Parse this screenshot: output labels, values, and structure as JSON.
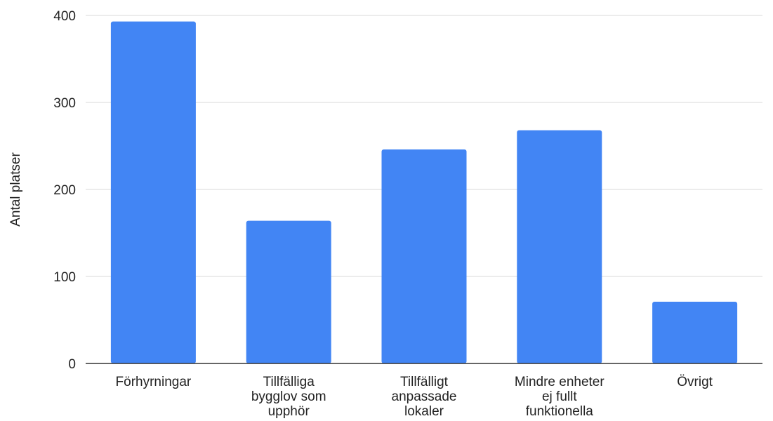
{
  "chart_data": {
    "type": "bar",
    "categories": [
      [
        "Förhyrningar"
      ],
      [
        "Tillfälliga",
        "bygglov som",
        "upphör"
      ],
      [
        "Tillfälligt",
        "anpassade",
        "lokaler"
      ],
      [
        "Mindre enheter",
        "ej fullt",
        "funktionella"
      ],
      [
        "Övrigt"
      ]
    ],
    "values": [
      393,
      164,
      246,
      268,
      71
    ],
    "ylabel": "Antal platser",
    "xlabel": "",
    "ylim": [
      0,
      400
    ],
    "yticks": [
      0,
      100,
      200,
      300,
      400
    ],
    "grid": true,
    "legend": "none",
    "bar_color": "#4285f4"
  }
}
